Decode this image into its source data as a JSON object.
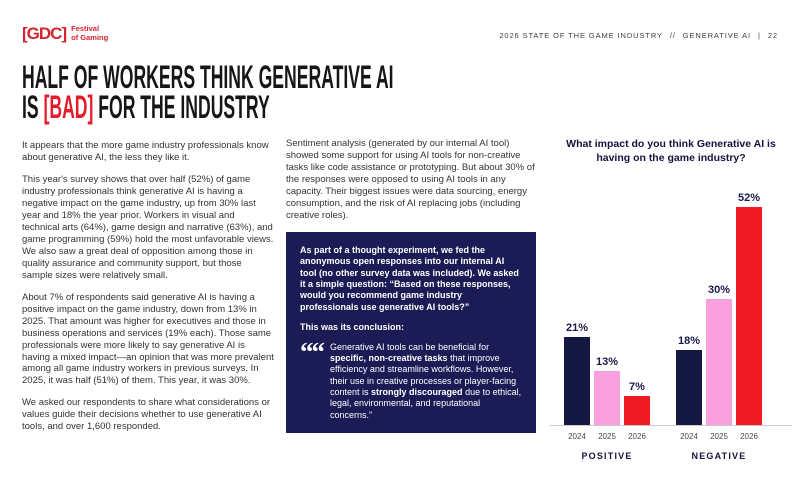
{
  "colors": {
    "logo_red": "#D4262E",
    "headline_red": "#E31E2A",
    "callout_bg": "#1B1C55",
    "axis_gray": "#C9C9C9"
  },
  "header": {
    "logo_mark": "[GDC]",
    "logo_tagline_line1": "Festival",
    "logo_tagline_line2": "of Gaming",
    "meta_title": "2026 STATE OF THE GAME INDUSTRY",
    "meta_separator": "//",
    "meta_section": "GENERATIVE AI",
    "meta_divider": "|",
    "page_number": "22"
  },
  "headline": {
    "line1": "HALF OF WORKERS THINK GENERATIVE AI",
    "line2_pre": "IS ",
    "line2_highlight": "[BAD]",
    "line2_post": " FOR THE INDUSTRY"
  },
  "left_column": {
    "paragraphs": [
      "It appears that the more game industry professionals know about generative AI, the less they like it.",
      "This year's survey shows that over half (52%) of game industry professionals think generative AI is having a negative impact on the game industry, up from 30% last year and 18% the year prior. Workers in visual and technical arts (64%), game design and narrative (63%), and game programming (59%) hold the most unfavorable views. We also saw a great deal of opposition among those in quality assurance and community support, but those sample sizes were relatively small.",
      "About 7% of respondents said generative AI is having a positive impact on the game industry, down from 13% in 2025. That amount was higher for executives and those in business operations and services (19% each). Those same professionals were more likely to say generative AI is having a mixed impact—an opinion that was more prevalent among all game industry workers in previous surveys. In 2025, it was half (51%) of them. This year, it was 30%.",
      "We asked our respondents to share what considerations or values guide their decisions whether to use generative AI tools, and over 1,600 responded."
    ]
  },
  "middle_column": {
    "intro": "Sentiment analysis (generated by our internal AI tool) showed some support for using AI tools for non-creative tasks like code assistance or prototyping. But about 30% of the responses were opposed to using AI tools in any capacity. Their biggest issues were data sourcing, energy consumption, and the risk of AI replacing jobs (including creative roles).",
    "callout": {
      "experiment": "As part of a thought experiment, we fed the anonymous open responses into our internal AI tool (no other survey data was included). We asked it a simple question: “Based on these responses, would you recommend game industry professionals use generative AI tools?”",
      "conclusion_label": "This was its conclusion:",
      "quote_glyph": "“",
      "quote_pre": "Generative AI tools can be beneficial for ",
      "quote_bold1": "specific, non-creative tasks",
      "quote_mid": " that improve efficiency and streamline workflows. However, their use in creative processes or player-facing content is ",
      "quote_bold2": "strongly discouraged",
      "quote_post": " due to ethical, legal, environmental, and reputational concerns.”"
    }
  },
  "chart_data": {
    "type": "bar",
    "title": "What impact do you think Generative AI is having on the game industry?",
    "categories": [
      "2024",
      "2025",
      "2026"
    ],
    "groups": [
      {
        "label": "POSITIVE",
        "values": [
          21,
          13,
          7
        ]
      },
      {
        "label": "NEGATIVE",
        "values": [
          18,
          30,
          52
        ]
      }
    ],
    "value_labels": [
      [
        "21%",
        "13%",
        "7%"
      ],
      [
        "18%",
        "30%",
        "52%"
      ]
    ],
    "series_colors": [
      "#14173F",
      "#F9A0DF",
      "#EE1B22"
    ],
    "ylim": [
      0,
      54
    ],
    "value_suffix": "%",
    "grid": false,
    "legend": "none"
  }
}
